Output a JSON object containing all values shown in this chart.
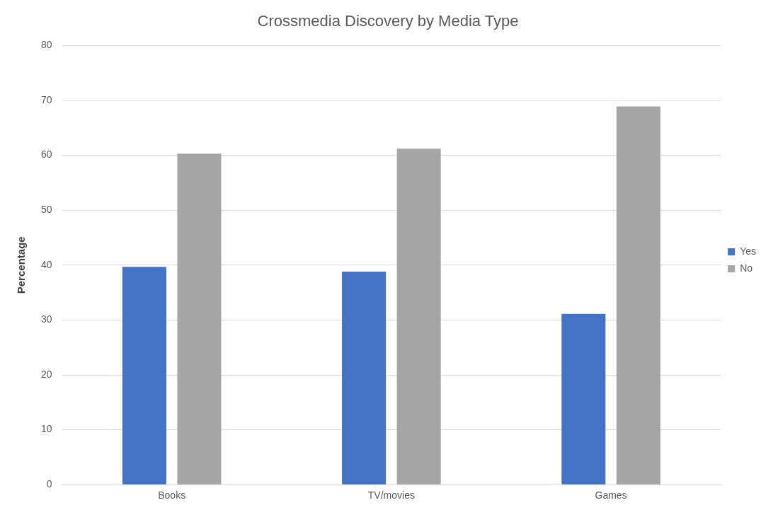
{
  "chart_data": {
    "type": "bar",
    "title": "Crossmedia Discovery by Media Type",
    "ylabel": "Percentage",
    "categories": [
      "Books",
      "TV/movies",
      "Games"
    ],
    "series": [
      {
        "name": "Yes",
        "color": "#4472c4",
        "values": [
          39.7,
          38.8,
          31.1
        ]
      },
      {
        "name": "No",
        "color": "#a5a5a5",
        "values": [
          60.3,
          61.2,
          68.9
        ]
      }
    ],
    "ylim": [
      0,
      80
    ],
    "yticks": [
      0,
      10,
      20,
      30,
      40,
      50,
      60,
      70,
      80
    ],
    "grid": "y",
    "legend": "right"
  }
}
